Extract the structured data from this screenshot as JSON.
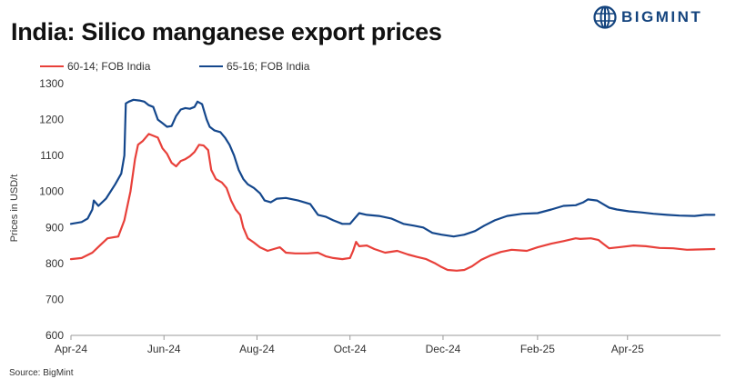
{
  "title": "India: Silico manganese export prices",
  "brand": {
    "name": "BIGMINT",
    "color": "#14447e",
    "icon": "globe-logo-icon"
  },
  "source": "Source: BigMint",
  "chart_data": {
    "type": "line",
    "title": "India: Silico manganese export prices",
    "ylabel": "Prices in USD/t",
    "xlabel": "",
    "ylim": [
      600,
      1300
    ],
    "yticks": [
      600,
      700,
      800,
      900,
      1000,
      1100,
      1200,
      1300
    ],
    "xlim": [
      "2024-04-01",
      "2025-06-01"
    ],
    "xticks": [
      {
        "date": "2024-04-01",
        "label": "Apr-24"
      },
      {
        "date": "2024-06-01",
        "label": "Jun-24"
      },
      {
        "date": "2024-08-01",
        "label": "Aug-24"
      },
      {
        "date": "2024-10-01",
        "label": "Oct-24"
      },
      {
        "date": "2024-12-01",
        "label": "Dec-24"
      },
      {
        "date": "2025-02-01",
        "label": "Feb-25"
      },
      {
        "date": "2025-04-01",
        "label": "Apr-25"
      }
    ],
    "grid": false,
    "legend_position": "top-left",
    "series": [
      {
        "name": "60-14; FOB India",
        "color": "#e8403a",
        "points": [
          [
            "2024-04-01",
            812
          ],
          [
            "2024-04-08",
            815
          ],
          [
            "2024-04-15",
            830
          ],
          [
            "2024-04-20",
            850
          ],
          [
            "2024-04-25",
            870
          ],
          [
            "2024-05-02",
            875
          ],
          [
            "2024-05-06",
            920
          ],
          [
            "2024-05-10",
            1000
          ],
          [
            "2024-05-13",
            1090
          ],
          [
            "2024-05-15",
            1130
          ],
          [
            "2024-05-18",
            1140
          ],
          [
            "2024-05-22",
            1160
          ],
          [
            "2024-05-25",
            1155
          ],
          [
            "2024-05-28",
            1150
          ],
          [
            "2024-05-31",
            1120
          ],
          [
            "2024-06-03",
            1105
          ],
          [
            "2024-06-06",
            1080
          ],
          [
            "2024-06-09",
            1070
          ],
          [
            "2024-06-12",
            1085
          ],
          [
            "2024-06-15",
            1090
          ],
          [
            "2024-06-18",
            1098
          ],
          [
            "2024-06-21",
            1110
          ],
          [
            "2024-06-24",
            1130
          ],
          [
            "2024-06-27",
            1128
          ],
          [
            "2024-06-30",
            1115
          ],
          [
            "2024-07-02",
            1060
          ],
          [
            "2024-07-05",
            1035
          ],
          [
            "2024-07-09",
            1025
          ],
          [
            "2024-07-12",
            1010
          ],
          [
            "2024-07-15",
            975
          ],
          [
            "2024-07-18",
            950
          ],
          [
            "2024-07-21",
            935
          ],
          [
            "2024-07-23",
            900
          ],
          [
            "2024-07-26",
            870
          ],
          [
            "2024-07-30",
            858
          ],
          [
            "2024-08-03",
            845
          ],
          [
            "2024-08-08",
            835
          ],
          [
            "2024-08-12",
            840
          ],
          [
            "2024-08-16",
            845
          ],
          [
            "2024-08-20",
            830
          ],
          [
            "2024-08-26",
            828
          ],
          [
            "2024-09-03",
            828
          ],
          [
            "2024-09-10",
            830
          ],
          [
            "2024-09-15",
            820
          ],
          [
            "2024-09-20",
            815
          ],
          [
            "2024-09-26",
            812
          ],
          [
            "2024-10-01",
            815
          ],
          [
            "2024-10-03",
            835
          ],
          [
            "2024-10-05",
            860
          ],
          [
            "2024-10-07",
            848
          ],
          [
            "2024-10-12",
            850
          ],
          [
            "2024-10-17",
            840
          ],
          [
            "2024-10-24",
            830
          ],
          [
            "2024-11-01",
            835
          ],
          [
            "2024-11-08",
            825
          ],
          [
            "2024-11-14",
            818
          ],
          [
            "2024-11-20",
            812
          ],
          [
            "2024-11-26",
            800
          ],
          [
            "2024-11-30",
            790
          ],
          [
            "2024-12-04",
            782
          ],
          [
            "2024-12-10",
            780
          ],
          [
            "2024-12-15",
            782
          ],
          [
            "2024-12-20",
            792
          ],
          [
            "2024-12-26",
            810
          ],
          [
            "2025-01-01",
            822
          ],
          [
            "2025-01-08",
            832
          ],
          [
            "2025-01-15",
            838
          ],
          [
            "2025-01-25",
            835
          ],
          [
            "2025-02-01",
            845
          ],
          [
            "2025-02-10",
            855
          ],
          [
            "2025-02-18",
            862
          ],
          [
            "2025-02-26",
            870
          ],
          [
            "2025-03-01",
            868
          ],
          [
            "2025-03-08",
            870
          ],
          [
            "2025-03-13",
            865
          ],
          [
            "2025-03-16",
            855
          ],
          [
            "2025-03-20",
            842
          ],
          [
            "2025-03-28",
            846
          ],
          [
            "2025-04-05",
            850
          ],
          [
            "2025-04-13",
            848
          ],
          [
            "2025-04-22",
            843
          ],
          [
            "2025-05-01",
            842
          ],
          [
            "2025-05-10",
            838
          ],
          [
            "2025-05-20",
            839
          ],
          [
            "2025-05-28",
            840
          ]
        ]
      },
      {
        "name": "65-16; FOB India",
        "color": "#14478c",
        "points": [
          [
            "2024-04-01",
            910
          ],
          [
            "2024-04-08",
            915
          ],
          [
            "2024-04-12",
            925
          ],
          [
            "2024-04-15",
            950
          ],
          [
            "2024-04-16",
            975
          ],
          [
            "2024-04-19",
            960
          ],
          [
            "2024-04-24",
            980
          ],
          [
            "2024-04-30",
            1020
          ],
          [
            "2024-05-04",
            1050
          ],
          [
            "2024-05-06",
            1100
          ],
          [
            "2024-05-07",
            1245
          ],
          [
            "2024-05-09",
            1250
          ],
          [
            "2024-05-12",
            1255
          ],
          [
            "2024-05-16",
            1253
          ],
          [
            "2024-05-19",
            1250
          ],
          [
            "2024-05-22",
            1240
          ],
          [
            "2024-05-25",
            1235
          ],
          [
            "2024-05-28",
            1200
          ],
          [
            "2024-05-31",
            1190
          ],
          [
            "2024-06-03",
            1180
          ],
          [
            "2024-06-06",
            1182
          ],
          [
            "2024-06-09",
            1210
          ],
          [
            "2024-06-12",
            1228
          ],
          [
            "2024-06-15",
            1232
          ],
          [
            "2024-06-18",
            1230
          ],
          [
            "2024-06-21",
            1235
          ],
          [
            "2024-06-23",
            1250
          ],
          [
            "2024-06-26",
            1243
          ],
          [
            "2024-06-29",
            1200
          ],
          [
            "2024-07-01",
            1180
          ],
          [
            "2024-07-04",
            1170
          ],
          [
            "2024-07-08",
            1165
          ],
          [
            "2024-07-11",
            1150
          ],
          [
            "2024-07-14",
            1130
          ],
          [
            "2024-07-17",
            1100
          ],
          [
            "2024-07-20",
            1060
          ],
          [
            "2024-07-23",
            1035
          ],
          [
            "2024-07-26",
            1020
          ],
          [
            "2024-07-30",
            1010
          ],
          [
            "2024-08-03",
            995
          ],
          [
            "2024-08-06",
            975
          ],
          [
            "2024-08-10",
            970
          ],
          [
            "2024-08-14",
            980
          ],
          [
            "2024-08-20",
            982
          ],
          [
            "2024-08-28",
            975
          ],
          [
            "2024-09-05",
            965
          ],
          [
            "2024-09-10",
            935
          ],
          [
            "2024-09-15",
            930
          ],
          [
            "2024-09-20",
            920
          ],
          [
            "2024-09-26",
            910
          ],
          [
            "2024-10-01",
            910
          ],
          [
            "2024-10-04",
            925
          ],
          [
            "2024-10-07",
            940
          ],
          [
            "2024-10-12",
            935
          ],
          [
            "2024-10-20",
            932
          ],
          [
            "2024-10-28",
            925
          ],
          [
            "2024-11-05",
            910
          ],
          [
            "2024-11-12",
            905
          ],
          [
            "2024-11-18",
            900
          ],
          [
            "2024-11-24",
            885
          ],
          [
            "2024-11-30",
            880
          ],
          [
            "2024-12-08",
            875
          ],
          [
            "2024-12-15",
            880
          ],
          [
            "2024-12-22",
            890
          ],
          [
            "2024-12-28",
            905
          ],
          [
            "2025-01-04",
            920
          ],
          [
            "2025-01-12",
            932
          ],
          [
            "2025-01-22",
            938
          ],
          [
            "2025-02-01",
            940
          ],
          [
            "2025-02-10",
            950
          ],
          [
            "2025-02-18",
            960
          ],
          [
            "2025-02-26",
            962
          ],
          [
            "2025-03-03",
            970
          ],
          [
            "2025-03-06",
            978
          ],
          [
            "2025-03-12",
            975
          ],
          [
            "2025-03-16",
            965
          ],
          [
            "2025-03-20",
            955
          ],
          [
            "2025-03-25",
            950
          ],
          [
            "2025-04-02",
            945
          ],
          [
            "2025-04-10",
            942
          ],
          [
            "2025-04-18",
            938
          ],
          [
            "2025-04-27",
            935
          ],
          [
            "2025-05-05",
            933
          ],
          [
            "2025-05-15",
            932
          ],
          [
            "2025-05-22",
            935
          ],
          [
            "2025-05-28",
            935
          ]
        ]
      }
    ]
  }
}
